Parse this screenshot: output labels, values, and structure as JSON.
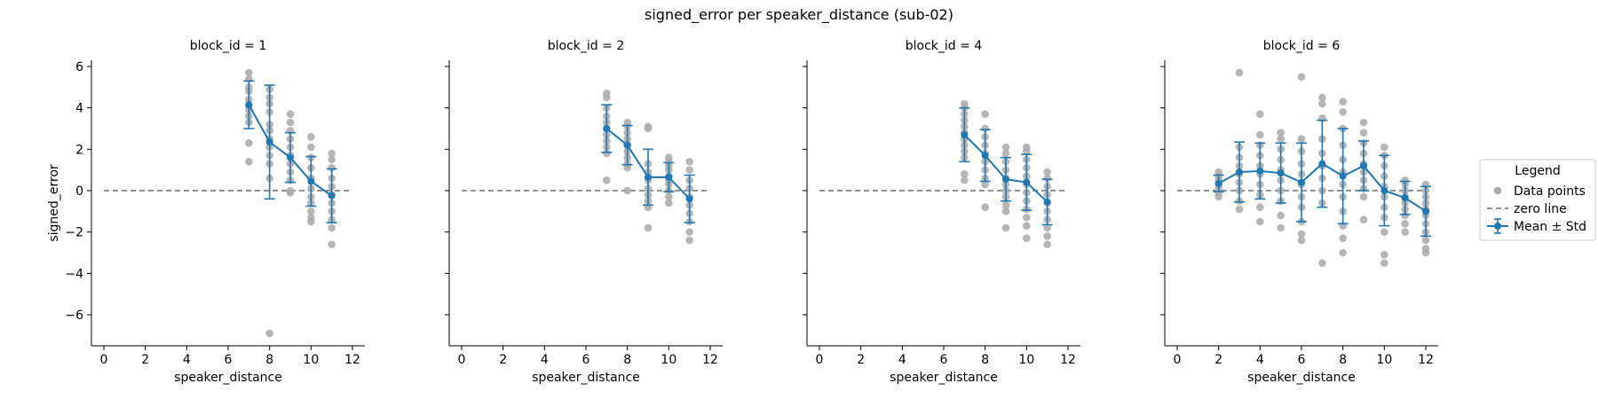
{
  "figure": {
    "suptitle": "signed_error per speaker_distance (sub-02)"
  },
  "chart_data": {
    "type": "scatter",
    "xlabel": "speaker_distance",
    "ylabel": "signed_error",
    "xlim": [
      -0.6,
      12.6
    ],
    "ylim": [
      -7.5,
      6.3
    ],
    "xticks": [
      0,
      2,
      4,
      6,
      8,
      10,
      12
    ],
    "yticks": [
      -6,
      -4,
      -2,
      0,
      2,
      4,
      6
    ],
    "zero_line": 0,
    "colors": {
      "points": "#a9a9a9",
      "mean": "#1f77b4",
      "zero": "#6e6e6e"
    },
    "legend": {
      "title": "Legend",
      "placement": "right",
      "entries": [
        "Data points",
        "zero line",
        "Mean ± Std"
      ]
    },
    "panels": [
      {
        "title": "block_id = 1",
        "mean": [
          {
            "x": 7,
            "y": 4.15,
            "std": 1.15
          },
          {
            "x": 8,
            "y": 2.35,
            "std": 2.75
          },
          {
            "x": 9,
            "y": 1.6,
            "std": 1.2
          },
          {
            "x": 10,
            "y": 0.45,
            "std": 1.2
          },
          {
            "x": 11,
            "y": -0.25,
            "std": 1.3
          }
        ],
        "points": [
          {
            "x": 7,
            "y": [
              5.7,
              5.4,
              5.0,
              4.8,
              4.4,
              4.1,
              3.9,
              3.6,
              3.3,
              2.3,
              1.4
            ]
          },
          {
            "x": 8,
            "y": [
              4.9,
              4.5,
              4.2,
              3.8,
              3.2,
              2.9,
              2.5,
              2.1,
              1.7,
              1.3,
              0.6,
              -6.9
            ]
          },
          {
            "x": 9,
            "y": [
              3.7,
              3.3,
              2.9,
              2.5,
              2.1,
              1.7,
              1.3,
              0.9,
              0.5,
              0.0,
              -0.1
            ]
          },
          {
            "x": 10,
            "y": [
              2.6,
              2.1,
              1.6,
              1.1,
              0.6,
              0.1,
              -0.3,
              -0.6,
              -1.0,
              -1.3,
              -1.5
            ]
          },
          {
            "x": 11,
            "y": [
              1.8,
              1.5,
              1.1,
              0.6,
              0.2,
              -0.2,
              -0.6,
              -1.0,
              -1.4,
              -1.8,
              -2.6
            ]
          }
        ]
      },
      {
        "title": "block_id = 2",
        "mean": [
          {
            "x": 7,
            "y": 3.0,
            "std": 1.15
          },
          {
            "x": 8,
            "y": 2.2,
            "std": 0.95
          },
          {
            "x": 9,
            "y": 0.65,
            "std": 1.35
          },
          {
            "x": 10,
            "y": 0.65,
            "std": 0.7
          },
          {
            "x": 11,
            "y": -0.4,
            "std": 1.15
          }
        ],
        "points": [
          {
            "x": 7,
            "y": [
              4.7,
              4.5,
              4.0,
              3.6,
              3.3,
              3.0,
              2.7,
              2.4,
              2.1,
              1.8,
              0.5
            ]
          },
          {
            "x": 8,
            "y": [
              3.3,
              3.1,
              2.8,
              2.5,
              2.2,
              1.9,
              1.6,
              1.3,
              1.1,
              0.0
            ]
          },
          {
            "x": 9,
            "y": [
              3.1,
              3.0,
              1.3,
              0.9,
              0.5,
              0.1,
              -0.2,
              -0.5,
              -0.8,
              -1.8
            ]
          },
          {
            "x": 10,
            "y": [
              1.6,
              1.4,
              1.2,
              1.0,
              0.7,
              0.5,
              0.3,
              0.0,
              -0.3,
              -0.6
            ]
          },
          {
            "x": 11,
            "y": [
              1.4,
              1.0,
              0.5,
              0.1,
              -0.3,
              -0.7,
              -1.1,
              -1.5,
              -2.0,
              -2.4
            ]
          }
        ]
      },
      {
        "title": "block_id = 4",
        "mean": [
          {
            "x": 7,
            "y": 2.7,
            "std": 1.3
          },
          {
            "x": 8,
            "y": 1.7,
            "std": 1.25
          },
          {
            "x": 9,
            "y": 0.55,
            "std": 1.05
          },
          {
            "x": 10,
            "y": 0.4,
            "std": 1.35
          },
          {
            "x": 11,
            "y": -0.55,
            "std": 1.1
          }
        ],
        "points": [
          {
            "x": 7,
            "y": [
              4.2,
              4.0,
              3.7,
              3.4,
              3.1,
              2.8,
              2.5,
              2.2,
              1.9,
              1.6,
              0.8,
              0.5
            ]
          },
          {
            "x": 8,
            "y": [
              3.7,
              3.0,
              2.6,
              2.2,
              1.8,
              1.4,
              1.0,
              0.6,
              0.3,
              -0.8
            ]
          },
          {
            "x": 9,
            "y": [
              2.1,
              1.8,
              1.4,
              1.0,
              0.6,
              0.3,
              0.0,
              -0.3,
              -0.7,
              -1.0,
              -1.8
            ]
          },
          {
            "x": 10,
            "y": [
              2.1,
              1.9,
              1.5,
              1.1,
              0.7,
              0.3,
              -0.1,
              -0.5,
              -0.9,
              -1.3,
              -1.7,
              -2.3
            ]
          },
          {
            "x": 11,
            "y": [
              0.9,
              0.6,
              0.2,
              -0.2,
              -0.6,
              -1.0,
              -1.4,
              -1.8,
              -2.2,
              -2.6
            ]
          }
        ]
      },
      {
        "title": "block_id = 6",
        "mean": [
          {
            "x": 2,
            "y": 0.35,
            "std": 0.4
          },
          {
            "x": 3,
            "y": 0.9,
            "std": 1.45
          },
          {
            "x": 4,
            "y": 0.95,
            "std": 1.35
          },
          {
            "x": 5,
            "y": 0.85,
            "std": 1.45
          },
          {
            "x": 6,
            "y": 0.4,
            "std": 1.9
          },
          {
            "x": 7,
            "y": 1.3,
            "std": 2.1
          },
          {
            "x": 8,
            "y": 0.7,
            "std": 2.3
          },
          {
            "x": 9,
            "y": 1.2,
            "std": 1.2
          },
          {
            "x": 10,
            "y": 0.0,
            "std": 1.7
          },
          {
            "x": 11,
            "y": -0.35,
            "std": 0.8
          },
          {
            "x": 12,
            "y": -1.0,
            "std": 1.2
          }
        ],
        "points": [
          {
            "x": 2,
            "y": [
              0.9,
              0.7,
              0.5,
              0.3,
              0.1,
              -0.1,
              -0.3
            ]
          },
          {
            "x": 3,
            "y": [
              5.7,
              2.1,
              1.6,
              1.2,
              0.8,
              0.4,
              0.0,
              -0.5,
              -0.9
            ]
          },
          {
            "x": 4,
            "y": [
              3.7,
              2.7,
              2.2,
              1.7,
              1.2,
              0.8,
              0.3,
              -0.2,
              -0.8,
              -1.5
            ]
          },
          {
            "x": 5,
            "y": [
              2.8,
              2.5,
              2.0,
              1.5,
              1.0,
              0.5,
              0.0,
              -0.5,
              -1.2,
              -1.8
            ]
          },
          {
            "x": 6,
            "y": [
              5.5,
              2.5,
              1.9,
              1.3,
              0.8,
              0.3,
              -0.3,
              -0.8,
              -1.5,
              -2.1,
              -2.4
            ]
          },
          {
            "x": 7,
            "y": [
              4.5,
              4.2,
              3.5,
              2.5,
              1.8,
              1.2,
              0.6,
              0.0,
              -0.6,
              -3.5
            ]
          },
          {
            "x": 8,
            "y": [
              4.3,
              3.8,
              3.0,
              2.2,
              1.5,
              0.9,
              0.3,
              -0.3,
              -1.0,
              -1.7,
              -2.3,
              -3.0
            ]
          },
          {
            "x": 9,
            "y": [
              3.3,
              2.8,
              2.3,
              1.8,
              1.3,
              0.9,
              0.5,
              0.1,
              -0.3,
              -1.4
            ]
          },
          {
            "x": 10,
            "y": [
              2.1,
              1.7,
              1.2,
              0.7,
              0.2,
              -0.3,
              -0.8,
              -1.3,
              -2.0,
              -3.1,
              -3.5
            ]
          },
          {
            "x": 11,
            "y": [
              0.5,
              0.3,
              0.0,
              -0.3,
              -0.6,
              -0.9,
              -1.2,
              -1.6,
              -2.0
            ]
          },
          {
            "x": 12,
            "y": [
              0.3,
              0.0,
              -0.3,
              -0.6,
              -0.9,
              -1.2,
              -1.6,
              -2.0,
              -2.4,
              -2.8,
              -3.0
            ]
          }
        ]
      }
    ]
  }
}
